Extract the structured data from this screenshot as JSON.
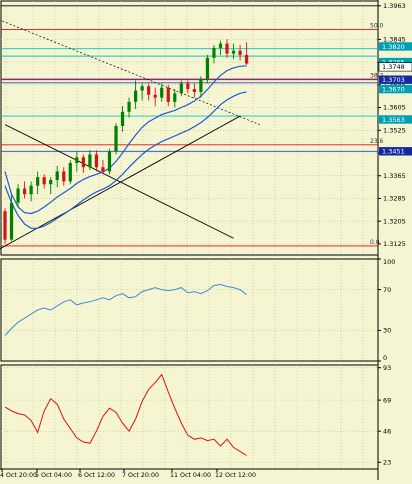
{
  "colors": {
    "background": "#f5f5d2",
    "grid": "#b9b98e",
    "candle_bull": "#008000",
    "candle_bear": "#d21414",
    "ma_inner": "#1e5ad2",
    "ma_outer": "#1e5ad2",
    "fib_red": "#e01010",
    "level_cyan": "#00c8c8",
    "level_blue": "#1e46d2",
    "trend_black": "#000000",
    "indicator_blue": "#3c8cdc",
    "indicator_red": "#e01010",
    "marker_dark": "#1428a0",
    "marker_cyan": "#00a0b4"
  },
  "chart_data": [
    {
      "type": "candlestick",
      "panel": "price",
      "ylim": [
        1.3086,
        1.398
      ],
      "y_ticks": [
        "1.3963",
        "1.3845",
        "1.3765",
        "1.3685",
        "1.3605",
        "1.3525",
        "1.3445",
        "1.3365",
        "1.3285",
        "1.3205",
        "1.3125"
      ],
      "x_ticks": [
        "4 Oct 20:00",
        "5 Oct 04:00",
        "6 Oct 12:00",
        "7 Oct 20:00",
        "11 Oct 04:00",
        "12 Oct 12:00"
      ],
      "candles": [
        {
          "o": 1.324,
          "h": 1.325,
          "l": 1.3125,
          "c": 1.314
        },
        {
          "o": 1.314,
          "h": 1.33,
          "l": 1.3135,
          "c": 1.327
        },
        {
          "o": 1.327,
          "h": 1.3335,
          "l": 1.3255,
          "c": 1.332
        },
        {
          "o": 1.332,
          "h": 1.3345,
          "l": 1.3285,
          "c": 1.33
        },
        {
          "o": 1.33,
          "h": 1.3345,
          "l": 1.3275,
          "c": 1.333
        },
        {
          "o": 1.333,
          "h": 1.338,
          "l": 1.33,
          "c": 1.336
        },
        {
          "o": 1.336,
          "h": 1.337,
          "l": 1.332,
          "c": 1.3335
        },
        {
          "o": 1.3335,
          "h": 1.336,
          "l": 1.33,
          "c": 1.335
        },
        {
          "o": 1.335,
          "h": 1.34,
          "l": 1.3325,
          "c": 1.338
        },
        {
          "o": 1.338,
          "h": 1.3395,
          "l": 1.333,
          "c": 1.3345
        },
        {
          "o": 1.3345,
          "h": 1.342,
          "l": 1.3335,
          "c": 1.341
        },
        {
          "o": 1.341,
          "h": 1.345,
          "l": 1.338,
          "c": 1.343
        },
        {
          "o": 1.343,
          "h": 1.344,
          "l": 1.3375,
          "c": 1.3395
        },
        {
          "o": 1.3395,
          "h": 1.3455,
          "l": 1.3385,
          "c": 1.344
        },
        {
          "o": 1.344,
          "h": 1.3455,
          "l": 1.338,
          "c": 1.3395
        },
        {
          "o": 1.3395,
          "h": 1.342,
          "l": 1.337,
          "c": 1.338
        },
        {
          "o": 1.338,
          "h": 1.346,
          "l": 1.337,
          "c": 1.345
        },
        {
          "o": 1.345,
          "h": 1.355,
          "l": 1.344,
          "c": 1.354
        },
        {
          "o": 1.354,
          "h": 1.361,
          "l": 1.352,
          "c": 1.359
        },
        {
          "o": 1.359,
          "h": 1.364,
          "l": 1.357,
          "c": 1.3625
        },
        {
          "o": 1.3625,
          "h": 1.37,
          "l": 1.36,
          "c": 1.3665
        },
        {
          "o": 1.3665,
          "h": 1.369,
          "l": 1.363,
          "c": 1.368
        },
        {
          "o": 1.368,
          "h": 1.369,
          "l": 1.363,
          "c": 1.365
        },
        {
          "o": 1.365,
          "h": 1.3675,
          "l": 1.361,
          "c": 1.364
        },
        {
          "o": 1.364,
          "h": 1.369,
          "l": 1.3625,
          "c": 1.3675
        },
        {
          "o": 1.3675,
          "h": 1.3685,
          "l": 1.361,
          "c": 1.3625
        },
        {
          "o": 1.3625,
          "h": 1.367,
          "l": 1.3605,
          "c": 1.3655
        },
        {
          "o": 1.3655,
          "h": 1.37,
          "l": 1.3645,
          "c": 1.369
        },
        {
          "o": 1.369,
          "h": 1.37,
          "l": 1.3655,
          "c": 1.367
        },
        {
          "o": 1.367,
          "h": 1.369,
          "l": 1.364,
          "c": 1.366
        },
        {
          "o": 1.366,
          "h": 1.3715,
          "l": 1.364,
          "c": 1.3705
        },
        {
          "o": 1.3705,
          "h": 1.379,
          "l": 1.369,
          "c": 1.378
        },
        {
          "o": 1.378,
          "h": 1.3825,
          "l": 1.376,
          "c": 1.3815
        },
        {
          "o": 1.3815,
          "h": 1.384,
          "l": 1.379,
          "c": 1.383
        },
        {
          "o": 1.383,
          "h": 1.3845,
          "l": 1.378,
          "c": 1.3795
        },
        {
          "o": 1.3795,
          "h": 1.383,
          "l": 1.3775,
          "c": 1.3805
        },
        {
          "o": 1.3805,
          "h": 1.3825,
          "l": 1.377,
          "c": 1.379
        },
        {
          "o": 1.379,
          "h": 1.3835,
          "l": 1.3755,
          "c": 1.376
        }
      ],
      "ma_inner": [
        1.338,
        1.33,
        1.3255,
        1.3235,
        1.3232,
        1.324,
        1.3255,
        1.3272,
        1.329,
        1.3305,
        1.332,
        1.3338,
        1.3352,
        1.3362,
        1.337,
        1.3378,
        1.3392,
        1.3415,
        1.3445,
        1.3478,
        1.3508,
        1.3535,
        1.3555,
        1.3568,
        1.358,
        1.3588,
        1.3595,
        1.3605,
        1.3615,
        1.3628,
        1.3645,
        1.3668,
        1.3695,
        1.3718,
        1.3735,
        1.3745,
        1.375,
        1.3752
      ],
      "ma_outer": [
        1.333,
        1.327,
        1.3225,
        1.3195,
        1.318,
        1.318,
        1.3188,
        1.32,
        1.3215,
        1.323,
        1.3245,
        1.3262,
        1.328,
        1.3295,
        1.3308,
        1.3318,
        1.333,
        1.3348,
        1.337,
        1.3395,
        1.3418,
        1.344,
        1.3458,
        1.3472,
        1.3485,
        1.3495,
        1.3505,
        1.3515,
        1.3525,
        1.3538,
        1.3552,
        1.357,
        1.3592,
        1.3615,
        1.3632,
        1.3645,
        1.3655,
        1.366
      ],
      "fib_levels": [
        {
          "label": "50.0",
          "price": 1.388
        },
        {
          "label": "38.2",
          "price": 1.3703
        },
        {
          "label": "23.6",
          "price": 1.3474
        },
        {
          "label": "0.0",
          "price": 1.3118
        }
      ],
      "horizontal_levels": [
        {
          "label": "1.3963",
          "price": 1.3963,
          "color": "#000000"
        },
        {
          "label": "1.3812",
          "price": 1.3812,
          "color": "#00c8c8"
        },
        {
          "label": "1.3786",
          "price": 1.3786,
          "color": "#00c8c8"
        },
        {
          "label": "1.3705",
          "price": 1.3705,
          "color": "#1e46d2"
        },
        {
          "label": "1.3692",
          "price": 1.3692,
          "color": "#1e46d2"
        },
        {
          "label": "1.3575",
          "price": 1.3575,
          "color": "#00c8c8"
        },
        {
          "label": "1.3451",
          "price": 1.3451,
          "color": "#1e46d2"
        }
      ],
      "price_markers": [
        {
          "label": "1.3820",
          "price": 1.382,
          "style": "cyan"
        },
        {
          "label": "1.3765",
          "price": 1.3765,
          "style": "cyan"
        },
        {
          "label": "1.3748",
          "price": 1.3748,
          "style": "white"
        },
        {
          "label": "1.3703",
          "price": 1.3703,
          "style": "dark"
        },
        {
          "label": "1.3670",
          "price": 1.367,
          "style": "cyan"
        },
        {
          "label": "1.3563",
          "price": 1.3563,
          "style": "cyan"
        },
        {
          "label": "1.3451",
          "price": 1.3451,
          "style": "dark"
        }
      ],
      "trendlines": [
        {
          "kind": "dashed",
          "from": {
            "bar": -1,
            "price": 1.3915
          },
          "to": {
            "bar": 39,
            "price": 1.3545
          }
        },
        {
          "kind": "solid",
          "from": {
            "bar": -1,
            "price": 1.3105
          },
          "to": {
            "bar": 36,
            "price": 1.3575
          }
        },
        {
          "kind": "solid",
          "from": {
            "bar": 0,
            "price": 1.3545
          },
          "to": {
            "bar": 35,
            "price": 1.3145
          }
        }
      ]
    },
    {
      "type": "line",
      "panel": "oscillator_1",
      "ylim": [
        0,
        100
      ],
      "y_ticks": [
        "100",
        "70",
        "30",
        "0"
      ],
      "series": [
        {
          "values": [
            25,
            32,
            38,
            42,
            46,
            50,
            52,
            50,
            54,
            58,
            60,
            55,
            57,
            58,
            60,
            62,
            60,
            64,
            66,
            62,
            63,
            68,
            70,
            72,
            70,
            69,
            70,
            72,
            67,
            68,
            66,
            69,
            74,
            75,
            73,
            72,
            70,
            65
          ]
        }
      ]
    },
    {
      "type": "line",
      "panel": "oscillator_2",
      "ylim": [
        18,
        95
      ],
      "y_ticks": [
        "93",
        "69",
        "46",
        "23"
      ],
      "series": [
        {
          "values": [
            64,
            61,
            59,
            58,
            54,
            45,
            61,
            70,
            66,
            55,
            48,
            41,
            38,
            37,
            46,
            57,
            63,
            60,
            52,
            46,
            55,
            68,
            77,
            82,
            88,
            75,
            63,
            52,
            43,
            40,
            41,
            39,
            40,
            35,
            40,
            34,
            31,
            28
          ]
        }
      ]
    }
  ]
}
